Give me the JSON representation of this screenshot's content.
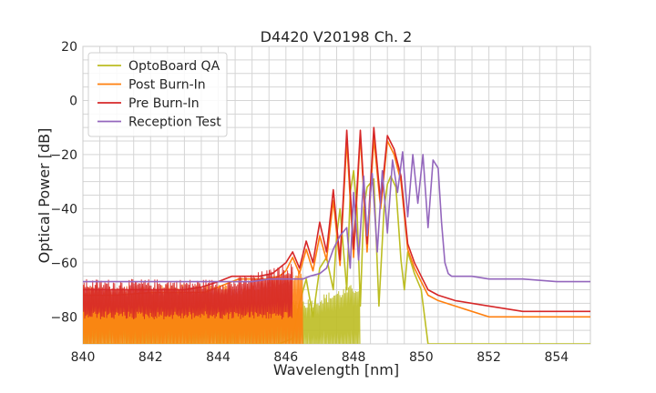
{
  "chart_data": {
    "type": "line",
    "title": "D4420 V20198 Ch. 2",
    "xlabel": "Wavelength [nm]",
    "ylabel": "Optical Power [dB]",
    "xlim": [
      840,
      855
    ],
    "ylim": [
      -90,
      20
    ],
    "xticks": [
      840,
      842,
      844,
      846,
      848,
      850,
      852,
      854
    ],
    "yticks": [
      20,
      0,
      -20,
      -40,
      -60,
      -80
    ],
    "grid": true,
    "legend": "top-left",
    "series": [
      {
        "name": "OptoBoard QA",
        "color": "#bcbd22",
        "noise_floor": {
          "x_range": [
            840,
            846.7
          ],
          "top": -77,
          "bottom": -90,
          "ramp_end": 848.2
        },
        "x": [
          840.0,
          842.0,
          844.0,
          845.8,
          846.2,
          846.4,
          846.6,
          846.8,
          847.0,
          847.2,
          847.4,
          847.5,
          847.6,
          847.8,
          847.9,
          848.0,
          848.1,
          848.2,
          848.3,
          848.4,
          848.6,
          848.75,
          848.9,
          849.0,
          849.1,
          849.25,
          849.4,
          849.5,
          849.6,
          849.8,
          850.0,
          850.2,
          850.4,
          850.6,
          851.0,
          852.0,
          855.0
        ],
        "values": [
          -90,
          -90,
          -90,
          -90,
          -88,
          -75,
          -66,
          -80,
          -62,
          -58,
          -70,
          -50,
          -40,
          -70,
          -34,
          -26,
          -40,
          -76,
          -40,
          -32,
          -29,
          -76,
          -40,
          -31,
          -28,
          -32,
          -59,
          -70,
          -56,
          -64,
          -70,
          -90,
          -90,
          -90,
          -90,
          -90,
          -90
        ]
      },
      {
        "name": "Post Burn-In",
        "color": "#ff7f0e",
        "noise_floor": {
          "x_range": [
            840,
            844.6
          ],
          "top": -72,
          "bottom": -90,
          "ramp_end": 846.5
        },
        "x": [
          840.0,
          841.0,
          842.0,
          843.0,
          843.6,
          844.2,
          844.6,
          845.0,
          845.4,
          845.8,
          846.0,
          846.2,
          846.4,
          846.6,
          846.8,
          847.0,
          847.2,
          847.4,
          847.6,
          847.8,
          848.0,
          848.2,
          848.4,
          848.6,
          848.8,
          849.0,
          849.2,
          849.4,
          849.6,
          849.8,
          850.0,
          850.2,
          850.5,
          851.0,
          852.0,
          853.0,
          854.0,
          855.0
        ],
        "values": [
          -72,
          -72,
          -71,
          -71,
          -71,
          -68,
          -66,
          -66,
          -66,
          -65,
          -63,
          -58,
          -64,
          -55,
          -63,
          -50,
          -59,
          -37,
          -61,
          -15,
          -58,
          -13,
          -56,
          -14,
          -40,
          -15,
          -20,
          -30,
          -55,
          -62,
          -67,
          -72,
          -74,
          -76,
          -80,
          -80,
          -80,
          -80
        ]
      },
      {
        "name": "Pre Burn-In",
        "color": "#d62728",
        "noise_floor": {
          "x_range": [
            840,
            844.4
          ],
          "top": -70,
          "bottom": -78,
          "ramp_end": 846.2
        },
        "x": [
          840.0,
          841.0,
          842.0,
          843.0,
          843.5,
          844.0,
          844.4,
          844.8,
          845.2,
          845.6,
          846.0,
          846.2,
          846.4,
          846.6,
          846.8,
          847.0,
          847.2,
          847.4,
          847.6,
          847.8,
          848.0,
          848.2,
          848.4,
          848.6,
          848.8,
          849.0,
          849.2,
          849.4,
          849.6,
          849.8,
          850.0,
          850.2,
          850.5,
          851.0,
          852.0,
          853.0,
          854.0,
          855.0
        ],
        "values": [
          -70,
          -70,
          -70,
          -70,
          -69,
          -67,
          -65,
          -65,
          -65,
          -64,
          -60,
          -56,
          -62,
          -52,
          -60,
          -45,
          -56,
          -33,
          -59,
          -11,
          -55,
          -11,
          -53,
          -10,
          -38,
          -13,
          -18,
          -28,
          -53,
          -60,
          -65,
          -70,
          -72,
          -74,
          -76,
          -78,
          -78,
          -78
        ]
      },
      {
        "name": "Reception Test",
        "color": "#9467bd",
        "x": [
          840.0,
          842.0,
          844.0,
          845.0,
          845.5,
          846.0,
          846.5,
          846.7,
          847.0,
          847.2,
          847.4,
          847.6,
          847.8,
          847.9,
          848.0,
          848.15,
          848.3,
          848.4,
          848.55,
          848.7,
          848.85,
          849.0,
          849.15,
          849.3,
          849.45,
          849.6,
          849.75,
          849.9,
          850.05,
          850.2,
          850.35,
          850.5,
          850.6,
          850.7,
          850.8,
          850.9,
          851.0,
          851.5,
          852.0,
          853.0,
          854.0,
          855.0
        ],
        "values": [
          -67,
          -67,
          -67,
          -67,
          -66,
          -66,
          -66,
          -65,
          -64,
          -62,
          -55,
          -50,
          -47,
          -62,
          -34,
          -59,
          -28,
          -50,
          -27,
          -56,
          -26,
          -49,
          -22,
          -34,
          -19,
          -43,
          -20,
          -38,
          -20,
          -47,
          -22,
          -25,
          -45,
          -60,
          -64,
          -65,
          -65,
          -65,
          -66,
          -66,
          -67,
          -67
        ]
      }
    ]
  }
}
